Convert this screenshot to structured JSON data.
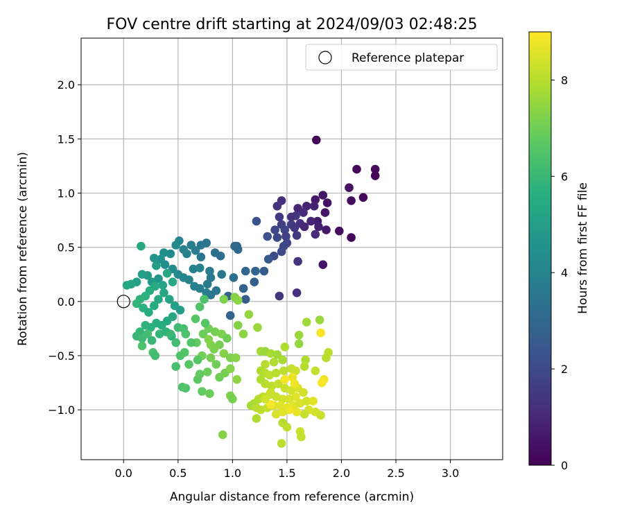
{
  "chart_data": {
    "type": "scatter",
    "title": "FOV centre drift starting at 2024/09/03 02:48:25",
    "xlabel": "Angular distance from reference (arcmin)",
    "ylabel": "Rotation from reference (arcmin)",
    "xlim": [
      -0.39,
      3.48
    ],
    "ylim": [
      -1.46,
      2.43
    ],
    "xticks": [
      "0.0",
      "0.5",
      "1.0",
      "1.5",
      "2.0",
      "2.5",
      "3.0"
    ],
    "xtick_values": [
      0.0,
      0.5,
      1.0,
      1.5,
      2.0,
      2.5,
      3.0
    ],
    "yticks": [
      "−1.0",
      "−0.5",
      "0.0",
      "0.5",
      "1.0",
      "1.5",
      "2.0"
    ],
    "ytick_values": [
      -1.0,
      -0.5,
      0.0,
      0.5,
      1.0,
      1.5,
      2.0
    ],
    "grid": true,
    "colormap": "viridis",
    "legend": {
      "position": "top-right",
      "label": "Reference platepar"
    },
    "reference_point": {
      "x": 0.0,
      "y": 0.0
    },
    "colorbar": {
      "label": "Hours from first FF file",
      "range": [
        0,
        9
      ],
      "ticks": [
        "0",
        "2",
        "4",
        "6",
        "8"
      ],
      "tick_values": [
        0,
        2,
        4,
        6,
        8
      ]
    },
    "points": [
      [
        1.77,
        1.49,
        0.1
      ],
      [
        2.14,
        1.22,
        0.2
      ],
      [
        2.31,
        1.22,
        0.3
      ],
      [
        2.31,
        1.16,
        0.1
      ],
      [
        2.07,
        1.05,
        0.4
      ],
      [
        2.2,
        0.96,
        0.2
      ],
      [
        2.09,
        0.93,
        0.3
      ],
      [
        1.83,
        0.98,
        0.5
      ],
      [
        1.76,
        0.94,
        0.6
      ],
      [
        1.87,
        0.91,
        0.4
      ],
      [
        1.75,
        0.88,
        0.8
      ],
      [
        1.68,
        0.88,
        0.9
      ],
      [
        1.6,
        0.86,
        1.0
      ],
      [
        1.45,
        0.93,
        1.2
      ],
      [
        1.41,
        0.88,
        1.3
      ],
      [
        1.85,
        0.82,
        0.5
      ],
      [
        1.65,
        0.82,
        1.1
      ],
      [
        1.58,
        0.79,
        1.4
      ],
      [
        1.54,
        0.78,
        1.3
      ],
      [
        1.43,
        0.78,
        1.5
      ],
      [
        1.78,
        0.74,
        0.7
      ],
      [
        1.72,
        0.74,
        0.9
      ],
      [
        1.62,
        0.72,
        1.2
      ],
      [
        1.54,
        0.71,
        1.6
      ],
      [
        1.45,
        0.71,
        1.7
      ],
      [
        1.79,
        0.69,
        0.8
      ],
      [
        1.66,
        0.69,
        1.0
      ],
      [
        1.57,
        0.68,
        1.4
      ],
      [
        1.48,
        0.66,
        1.8
      ],
      [
        1.39,
        0.66,
        1.9
      ],
      [
        1.86,
        0.66,
        0.6
      ],
      [
        1.98,
        0.65,
        0.3
      ],
      [
        1.76,
        0.62,
        1.1
      ],
      [
        1.59,
        0.61,
        1.5
      ],
      [
        1.49,
        0.6,
        1.7
      ],
      [
        1.41,
        0.59,
        2.0
      ],
      [
        1.32,
        0.6,
        2.2
      ],
      [
        1.22,
        0.74,
        2.3
      ],
      [
        2.09,
        0.59,
        0.2
      ],
      [
        1.5,
        0.54,
        1.8
      ],
      [
        1.47,
        0.51,
        1.9
      ],
      [
        1.38,
        0.42,
        2.1
      ],
      [
        1.45,
        0.46,
        2.0
      ],
      [
        1.6,
        0.37,
        1.3
      ],
      [
        1.83,
        0.34,
        0.5
      ],
      [
        1.59,
        0.08,
        1.2
      ],
      [
        1.43,
        0.05,
        1.4
      ],
      [
        1.33,
        0.39,
        2.5
      ],
      [
        1.29,
        0.28,
        2.6
      ],
      [
        1.21,
        0.28,
        2.9
      ],
      [
        1.12,
        0.28,
        3.0
      ],
      [
        1.2,
        0.18,
        2.7
      ],
      [
        1.1,
        0.12,
        2.8
      ],
      [
        1.04,
        0.51,
        2.9
      ],
      [
        1.02,
        0.51,
        3.1
      ],
      [
        1.05,
        0.48,
        3.0
      ],
      [
        1.12,
        0.02,
        2.6
      ],
      [
        1.01,
        0.22,
        3.3
      ],
      [
        0.89,
        0.42,
        3.2
      ],
      [
        0.84,
        0.45,
        3.3
      ],
      [
        0.76,
        0.54,
        3.4
      ],
      [
        0.71,
        0.52,
        3.5
      ],
      [
        0.71,
        0.41,
        3.6
      ],
      [
        0.66,
        0.47,
        3.7
      ],
      [
        0.62,
        0.52,
        3.8
      ],
      [
        0.58,
        0.44,
        3.9
      ],
      [
        0.55,
        0.48,
        4.0
      ],
      [
        0.51,
        0.56,
        4.1
      ],
      [
        0.48,
        0.52,
        4.2
      ],
      [
        0.43,
        0.44,
        4.3
      ],
      [
        0.37,
        0.45,
        4.4
      ],
      [
        0.34,
        0.39,
        4.5
      ],
      [
        0.28,
        0.4,
        4.6
      ],
      [
        0.38,
        0.34,
        4.4
      ],
      [
        0.45,
        0.3,
        4.3
      ],
      [
        0.5,
        0.25,
        4.2
      ],
      [
        0.55,
        0.22,
        4.1
      ],
      [
        0.6,
        0.2,
        4.0
      ],
      [
        0.65,
        0.14,
        3.9
      ],
      [
        0.7,
        0.12,
        3.8
      ],
      [
        0.77,
        0.16,
        3.7
      ],
      [
        0.8,
        0.22,
        3.6
      ],
      [
        0.85,
        0.1,
        3.5
      ],
      [
        0.8,
        0.06,
        3.4
      ],
      [
        0.76,
        0.08,
        3.8
      ],
      [
        0.64,
        0.3,
        3.9
      ],
      [
        0.7,
        0.31,
        4.0
      ],
      [
        0.79,
        0.28,
        3.7
      ],
      [
        0.9,
        0.25,
        3.6
      ],
      [
        0.96,
        0.05,
        2.8
      ],
      [
        0.98,
        -0.13,
        2.9
      ],
      [
        0.32,
        0.21,
        4.7
      ],
      [
        0.26,
        0.18,
        4.8
      ],
      [
        0.22,
        0.24,
        4.9
      ],
      [
        0.17,
        0.25,
        5.0
      ],
      [
        0.12,
        0.18,
        5.1
      ],
      [
        0.07,
        0.16,
        5.2
      ],
      [
        0.03,
        0.15,
        5.3
      ],
      [
        0.16,
        0.51,
        5.4
      ],
      [
        0.3,
        0.33,
        5.0
      ],
      [
        0.4,
        0.26,
        5.3
      ],
      [
        0.45,
        0.18,
        5.4
      ],
      [
        0.36,
        0.15,
        5.2
      ],
      [
        0.29,
        0.14,
        5.5
      ],
      [
        0.24,
        0.1,
        5.6
      ],
      [
        0.2,
        0.05,
        5.7
      ],
      [
        0.15,
        0.02,
        5.8
      ],
      [
        0.12,
        -0.02,
        5.9
      ],
      [
        0.18,
        -0.06,
        5.7
      ],
      [
        0.23,
        -0.1,
        5.6
      ],
      [
        0.28,
        -0.04,
        5.5
      ],
      [
        0.32,
        0.02,
        5.4
      ],
      [
        0.37,
        0.08,
        5.3
      ],
      [
        0.42,
        0.02,
        5.2
      ],
      [
        0.47,
        -0.04,
        5.1
      ],
      [
        0.52,
        -0.08,
        5.0
      ],
      [
        0.45,
        -0.14,
        5.3
      ],
      [
        0.4,
        -0.18,
        5.4
      ],
      [
        0.35,
        -0.22,
        5.5
      ],
      [
        0.3,
        -0.2,
        5.6
      ],
      [
        0.25,
        -0.24,
        5.7
      ],
      [
        0.2,
        -0.22,
        5.8
      ],
      [
        0.15,
        -0.28,
        5.9
      ],
      [
        0.12,
        -0.32,
        6.0
      ],
      [
        0.17,
        -0.34,
        6.1
      ],
      [
        0.22,
        -0.3,
        6.2
      ],
      [
        0.26,
        -0.36,
        6.0
      ],
      [
        0.33,
        -0.3,
        5.9
      ],
      [
        0.39,
        -0.28,
        5.8
      ],
      [
        0.44,
        -0.32,
        5.7
      ],
      [
        0.5,
        -0.24,
        6.1
      ],
      [
        0.55,
        -0.25,
        6.3
      ],
      [
        0.48,
        -0.38,
        6.2
      ],
      [
        0.43,
        -0.3,
        6.0
      ],
      [
        0.17,
        -0.41,
        6.4
      ],
      [
        0.27,
        -0.47,
        6.3
      ],
      [
        0.29,
        -0.5,
        6.2
      ],
      [
        0.52,
        -0.5,
        6.4
      ],
      [
        0.56,
        -0.47,
        6.5
      ],
      [
        0.6,
        -0.58,
        6.6
      ],
      [
        0.48,
        -0.6,
        6.3
      ],
      [
        0.54,
        -0.79,
        6.4
      ],
      [
        0.57,
        -0.8,
        6.5
      ],
      [
        0.68,
        -0.72,
        6.7
      ],
      [
        0.7,
        -0.67,
        6.8
      ],
      [
        0.77,
        -0.65,
        6.9
      ],
      [
        0.72,
        -0.83,
        6.8
      ],
      [
        0.79,
        -0.85,
        6.9
      ],
      [
        0.88,
        -0.7,
        7.0
      ],
      [
        0.93,
        -0.66,
        7.1
      ],
      [
        0.85,
        -0.58,
        7.0
      ],
      [
        0.8,
        -0.52,
        7.1
      ],
      [
        0.72,
        -0.5,
        7.0
      ],
      [
        0.67,
        -0.38,
        6.8
      ],
      [
        0.73,
        -0.3,
        6.9
      ],
      [
        0.78,
        -0.25,
        7.0
      ],
      [
        0.84,
        -0.28,
        7.1
      ],
      [
        0.9,
        -0.3,
        7.2
      ],
      [
        0.95,
        -0.34,
        7.0
      ],
      [
        0.88,
        -0.4,
        7.1
      ],
      [
        0.8,
        -0.4,
        7.2
      ],
      [
        0.78,
        -0.35,
        7.3
      ],
      [
        0.83,
        -0.44,
        7.2
      ],
      [
        0.92,
        -0.48,
        7.3
      ],
      [
        0.98,
        -0.52,
        7.2
      ],
      [
        1.03,
        -0.52,
        7.3
      ],
      [
        0.98,
        -0.62,
        7.3
      ],
      [
        1.04,
        -0.72,
        7.4
      ],
      [
        0.98,
        -0.87,
        7.2
      ],
      [
        1.0,
        -0.9,
        7.1
      ],
      [
        0.91,
        -1.23,
        7.3
      ],
      [
        0.68,
        -0.54,
        6.6
      ],
      [
        0.62,
        -0.38,
        6.5
      ],
      [
        0.57,
        -0.3,
        6.4
      ],
      [
        0.66,
        -0.16,
        6.6
      ],
      [
        0.7,
        -0.05,
        6.5
      ],
      [
        0.74,
        0.02,
        6.4
      ],
      [
        0.75,
        -0.2,
        6.6
      ],
      [
        0.92,
        0.02,
        7.2
      ],
      [
        1.02,
        0.04,
        7.3
      ],
      [
        1.05,
        0.01,
        7.4
      ],
      [
        1.15,
        -0.12,
        7.5
      ],
      [
        1.1,
        -0.3,
        7.4
      ],
      [
        1.05,
        -0.22,
        7.3
      ],
      [
        1.23,
        -0.24,
        7.6
      ],
      [
        1.26,
        -0.46,
        7.7
      ],
      [
        1.3,
        -0.46,
        7.6
      ],
      [
        1.35,
        -0.48,
        7.8
      ],
      [
        1.41,
        -0.49,
        7.7
      ],
      [
        1.48,
        -0.42,
        7.9
      ],
      [
        1.46,
        -0.54,
        7.8
      ],
      [
        1.38,
        -0.56,
        7.9
      ],
      [
        1.3,
        -0.58,
        8.0
      ],
      [
        1.26,
        -0.64,
        7.9
      ],
      [
        1.3,
        -0.66,
        8.0
      ],
      [
        1.34,
        -0.68,
        8.1
      ],
      [
        1.4,
        -0.66,
        8.0
      ],
      [
        1.47,
        -0.64,
        8.1
      ],
      [
        1.54,
        -0.62,
        8.2
      ],
      [
        1.58,
        -0.64,
        8.3
      ],
      [
        1.26,
        -0.72,
        7.9
      ],
      [
        1.3,
        -0.76,
        8.0
      ],
      [
        1.36,
        -0.78,
        8.1
      ],
      [
        1.42,
        -0.76,
        8.2
      ],
      [
        1.48,
        -0.8,
        8.3
      ],
      [
        1.54,
        -0.82,
        8.4
      ],
      [
        1.6,
        -0.8,
        8.5
      ],
      [
        1.65,
        -0.84,
        8.4
      ],
      [
        1.58,
        -0.88,
        8.6
      ],
      [
        1.52,
        -0.9,
        8.5
      ],
      [
        1.46,
        -0.9,
        8.4
      ],
      [
        1.4,
        -0.88,
        8.3
      ],
      [
        1.34,
        -0.86,
        8.2
      ],
      [
        1.28,
        -0.88,
        8.1
      ],
      [
        1.24,
        -0.9,
        8.0
      ],
      [
        1.2,
        -0.94,
        7.9
      ],
      [
        1.17,
        -0.96,
        7.8
      ],
      [
        1.22,
        -0.98,
        8.0
      ],
      [
        1.26,
        -1.0,
        8.1
      ],
      [
        1.32,
        -0.98,
        8.2
      ],
      [
        1.38,
        -0.96,
        8.5
      ],
      [
        1.44,
        -0.96,
        8.6
      ],
      [
        1.5,
        -0.98,
        8.7
      ],
      [
        1.56,
        -0.96,
        8.6
      ],
      [
        1.62,
        -0.94,
        8.5
      ],
      [
        1.68,
        -0.92,
        8.4
      ],
      [
        1.74,
        -0.92,
        8.6
      ],
      [
        1.7,
        -1.0,
        8.5
      ],
      [
        1.76,
        -1.02,
        8.4
      ],
      [
        1.81,
        -1.05,
        8.3
      ],
      [
        1.66,
        -1.04,
        8.2
      ],
      [
        1.59,
        -1.02,
        8.7
      ],
      [
        1.52,
        -1.0,
        8.8
      ],
      [
        1.46,
        -1.02,
        8.6
      ],
      [
        1.4,
        -1.04,
        8.5
      ],
      [
        1.35,
        -0.95,
        8.9
      ],
      [
        1.22,
        -1.08,
        7.9
      ],
      [
        1.46,
        -1.12,
        8.0
      ],
      [
        1.5,
        -1.16,
        8.1
      ],
      [
        1.62,
        -1.2,
        8.3
      ],
      [
        1.63,
        -1.25,
        8.2
      ],
      [
        1.45,
        -1.31,
        8.1
      ],
      [
        1.61,
        -0.31,
        7.6
      ],
      [
        1.61,
        -0.39,
        7.5
      ],
      [
        1.68,
        -0.19,
        7.7
      ],
      [
        1.8,
        -0.17,
        7.6
      ],
      [
        1.81,
        -0.29,
        8.9
      ],
      [
        1.86,
        -0.52,
        8.0
      ],
      [
        1.88,
        -0.47,
        8.1
      ],
      [
        1.67,
        -0.54,
        7.9
      ],
      [
        1.66,
        -0.6,
        8.0
      ],
      [
        1.76,
        -0.64,
        8.2
      ],
      [
        1.84,
        -0.72,
        8.8
      ],
      [
        1.82,
        -0.75,
        8.9
      ],
      [
        1.55,
        -0.7,
        8.7
      ],
      [
        1.57,
        -0.76,
        8.8
      ],
      [
        1.48,
        -0.72,
        8.9
      ],
      [
        1.35,
        -0.84,
        8.3
      ],
      [
        1.3,
        -0.9,
        8.4
      ]
    ]
  }
}
